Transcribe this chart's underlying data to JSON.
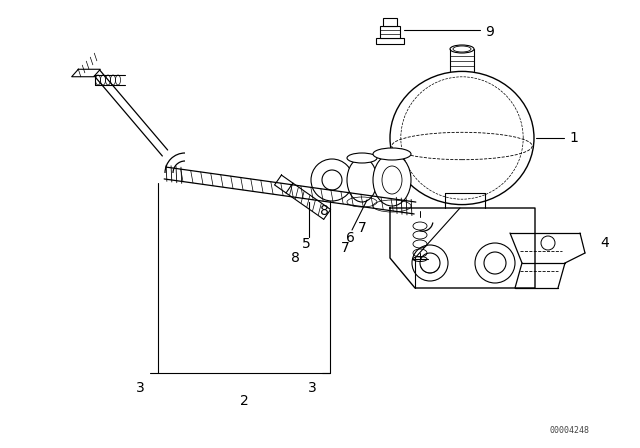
{
  "bg_color": "#ffffff",
  "line_color": "#000000",
  "fig_width": 6.4,
  "fig_height": 4.48,
  "dpi": 100,
  "watermark": "00004248"
}
